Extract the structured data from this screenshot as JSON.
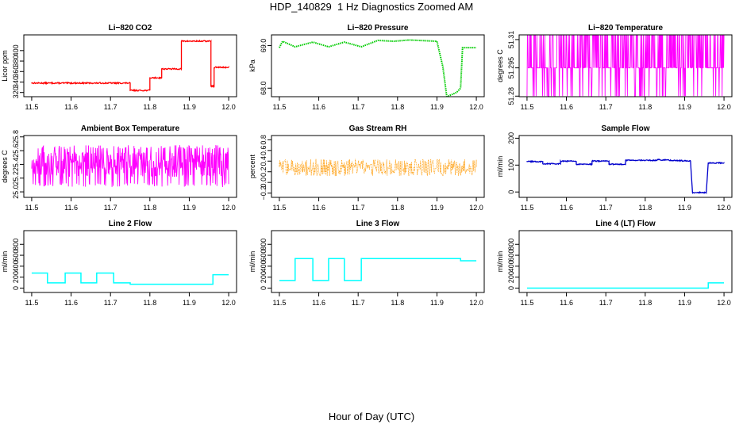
{
  "title": "HDP_140829  1 Hz Diagnostics Zoomed AM",
  "xlabel": "Hour of Day (UTC)",
  "chart_data": [
    {
      "type": "line",
      "title": "Li−820 CO2",
      "ylabel": "Licor ppm",
      "color": "#ff0000",
      "xlim": [
        11.48,
        12.02
      ],
      "ylim": [
        312,
        430
      ],
      "xticks": [
        11.5,
        11.6,
        11.7,
        11.8,
        11.9,
        12.0
      ],
      "xticklabels": [
        "11.5",
        "11.6",
        "11.7",
        "11.8",
        "11.9",
        "12.0"
      ],
      "yticks": [
        320,
        340,
        360,
        380,
        400
      ],
      "yticklabels": [
        "320",
        "340",
        "360",
        "380",
        "400"
      ],
      "style": "noisy",
      "noise": 1.2,
      "x": [
        11.5,
        11.75,
        11.75,
        11.8,
        11.8,
        11.83,
        11.83,
        11.88,
        11.88,
        11.955,
        11.955,
        11.963,
        11.963,
        12.0
      ],
      "y": [
        338,
        338,
        324,
        324,
        348,
        348,
        365,
        365,
        418,
        418,
        332,
        332,
        368,
        368
      ]
    },
    {
      "type": "line",
      "title": "Li−820 Pressure",
      "ylabel": "kPa",
      "color": "#00cc00",
      "xlim": [
        11.48,
        12.02
      ],
      "ylim": [
        67.8,
        69.25
      ],
      "xticks": [
        11.5,
        11.6,
        11.7,
        11.8,
        11.9,
        12.0
      ],
      "xticklabels": [
        "11.5",
        "11.6",
        "11.7",
        "11.8",
        "11.9",
        "12.0"
      ],
      "yticks": [
        68.0,
        69.0
      ],
      "yticklabels": [
        "68.0",
        "69.0"
      ],
      "style": "dotted",
      "x": [
        11.5,
        11.508,
        11.508,
        11.54,
        11.54,
        11.585,
        11.585,
        11.625,
        11.625,
        11.665,
        11.665,
        11.708,
        11.708,
        11.75,
        11.75,
        11.79,
        11.79,
        11.83,
        11.83,
        11.9,
        11.9,
        11.915,
        11.925,
        11.95,
        11.96,
        11.965,
        12.0
      ],
      "y": [
        68.95,
        69.1,
        69.1,
        68.97,
        68.97,
        69.08,
        69.08,
        68.97,
        68.97,
        69.08,
        69.08,
        68.97,
        68.97,
        69.12,
        69.12,
        69.1,
        69.1,
        69.13,
        69.13,
        69.1,
        69.1,
        68.5,
        67.8,
        67.9,
        68.0,
        68.95,
        68.95
      ]
    },
    {
      "type": "line",
      "title": "Li−820 Temperature",
      "ylabel": "degrees C",
      "color": "#ff00ff",
      "xlim": [
        11.48,
        12.02
      ],
      "ylim": [
        51.2797,
        51.3125
      ],
      "xticks": [
        11.5,
        11.6,
        11.7,
        11.8,
        11.9,
        12.0
      ],
      "xticklabels": [
        "11.5",
        "11.6",
        "11.7",
        "11.8",
        "11.9",
        "12.0"
      ],
      "yticks": [
        51.28,
        51.295,
        51.31
      ],
      "yticklabels": [
        "51.28",
        "51.295",
        "51.31"
      ],
      "style": "dense",
      "levels": [
        51.28,
        51.295,
        51.3125
      ],
      "x": [
        11.5,
        12.0
      ],
      "y": [
        51.295,
        51.295
      ]
    },
    {
      "type": "line",
      "title": "Ambient Box Temperature",
      "ylabel": "degrees C",
      "color": "#ff00ff",
      "xlim": [
        11.48,
        12.02
      ],
      "ylim": [
        24.92,
        25.82
      ],
      "xticks": [
        11.5,
        11.6,
        11.7,
        11.8,
        11.9,
        12.0
      ],
      "xticklabels": [
        "11.5",
        "11.6",
        "11.7",
        "11.8",
        "11.9",
        "12.0"
      ],
      "yticks": [
        25.0,
        25.2,
        25.4,
        25.6,
        25.8
      ],
      "yticklabels": [
        "25.0",
        "25.2",
        "25.4",
        "25.6",
        "25.8"
      ],
      "style": "dense",
      "levels": [
        25.1,
        25.25,
        25.35,
        25.45,
        25.55,
        25.65
      ],
      "x": [
        11.5,
        12.0
      ],
      "y": [
        25.4,
        25.4
      ]
    },
    {
      "type": "line",
      "title": "Gas Stream RH",
      "ylabel": "percent",
      "color": "#ff9900",
      "xlim": [
        11.48,
        12.02
      ],
      "ylim": [
        -0.28,
        0.88
      ],
      "xticks": [
        11.5,
        11.6,
        11.7,
        11.8,
        11.9,
        12.0
      ],
      "xticklabels": [
        "11.5",
        "11.6",
        "11.7",
        "11.8",
        "11.9",
        "12.0"
      ],
      "yticks": [
        -0.2,
        0.0,
        0.2,
        0.4,
        0.6,
        0.8
      ],
      "yticklabels": [
        "−0.2",
        "0.0",
        "0.2",
        "0.4",
        "0.6",
        "0.8"
      ],
      "style": "noisy-dotted",
      "noise": 0.16,
      "x": [
        11.5,
        12.0
      ],
      "y": [
        0.28,
        0.28
      ]
    },
    {
      "type": "line",
      "title": "Sample Flow",
      "ylabel": "ml/min",
      "color": "#0000cc",
      "xlim": [
        11.48,
        12.02
      ],
      "ylim": [
        -20,
        210
      ],
      "xticks": [
        11.5,
        11.6,
        11.7,
        11.8,
        11.9,
        12.0
      ],
      "xticklabels": [
        "11.5",
        "11.6",
        "11.7",
        "11.8",
        "11.9",
        "12.0"
      ],
      "yticks": [
        0,
        100,
        200
      ],
      "yticklabels": [
        "0",
        "100",
        "200"
      ],
      "style": "noisy",
      "noise": 2,
      "x": [
        11.5,
        11.54,
        11.54,
        11.585,
        11.585,
        11.625,
        11.625,
        11.665,
        11.665,
        11.708,
        11.708,
        11.75,
        11.75,
        11.83,
        11.83,
        11.915,
        11.92,
        11.955,
        11.96,
        12.0
      ],
      "y": [
        113,
        113,
        105,
        105,
        115,
        115,
        103,
        103,
        115,
        115,
        103,
        103,
        118,
        118,
        120,
        115,
        -2,
        -2,
        108,
        108
      ]
    },
    {
      "type": "line",
      "title": "Line 2 Flow",
      "ylabel": "ml/min",
      "color": "#00ffff",
      "xlim": [
        11.48,
        12.02
      ],
      "ylim": [
        -80,
        1050
      ],
      "xticks": [
        11.5,
        11.6,
        11.7,
        11.8,
        11.9,
        12.0
      ],
      "xticklabels": [
        "11.5",
        "11.6",
        "11.7",
        "11.8",
        "11.9",
        "12.0"
      ],
      "yticks": [
        0,
        200,
        400,
        600,
        800
      ],
      "yticklabels": [
        "0",
        "200",
        "400",
        "600",
        "800"
      ],
      "style": "line",
      "x": [
        11.5,
        11.54,
        11.54,
        11.585,
        11.585,
        11.625,
        11.625,
        11.665,
        11.665,
        11.708,
        11.708,
        11.75,
        11.75,
        11.96,
        11.96,
        12.0
      ],
      "y": [
        275,
        275,
        95,
        95,
        275,
        275,
        95,
        95,
        275,
        275,
        95,
        95,
        70,
        70,
        245,
        245
      ]
    },
    {
      "type": "line",
      "title": "Line 3 Flow",
      "ylabel": "ml/min",
      "color": "#00ffff",
      "xlim": [
        11.48,
        12.02
      ],
      "ylim": [
        -80,
        1050
      ],
      "xticks": [
        11.5,
        11.6,
        11.7,
        11.8,
        11.9,
        12.0
      ],
      "xticklabels": [
        "11.5",
        "11.6",
        "11.7",
        "11.8",
        "11.9",
        "12.0"
      ],
      "yticks": [
        0,
        200,
        400,
        600,
        800
      ],
      "yticklabels": [
        "0",
        "200",
        "400",
        "600",
        "800"
      ],
      "style": "line",
      "x": [
        11.5,
        11.54,
        11.54,
        11.585,
        11.585,
        11.625,
        11.625,
        11.665,
        11.665,
        11.708,
        11.708,
        11.96,
        11.96,
        12.0
      ],
      "y": [
        140,
        140,
        540,
        540,
        140,
        140,
        540,
        540,
        140,
        140,
        540,
        540,
        500,
        500
      ]
    },
    {
      "type": "line",
      "title": "Line 4 (LT) Flow",
      "ylabel": "ml/min",
      "color": "#00ffff",
      "xlim": [
        11.48,
        12.02
      ],
      "ylim": [
        -80,
        1050
      ],
      "xticks": [
        11.5,
        11.6,
        11.7,
        11.8,
        11.9,
        12.0
      ],
      "xticklabels": [
        "11.5",
        "11.6",
        "11.7",
        "11.8",
        "11.9",
        "12.0"
      ],
      "yticks": [
        0,
        200,
        400,
        600,
        800
      ],
      "yticklabels": [
        "0",
        "200",
        "400",
        "600",
        "800"
      ],
      "style": "line",
      "x": [
        11.5,
        11.96,
        11.96,
        12.0
      ],
      "y": [
        0,
        0,
        95,
        95
      ]
    }
  ]
}
